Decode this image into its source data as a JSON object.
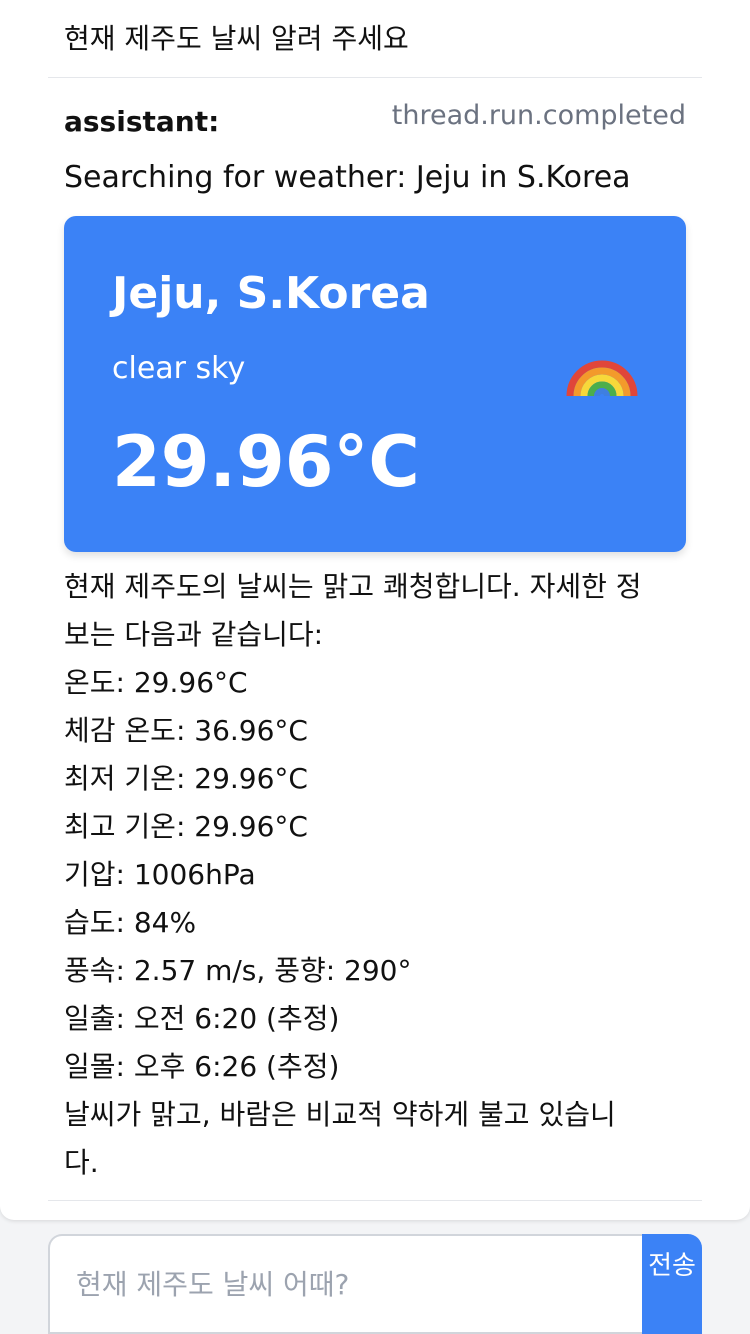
{
  "conversation": {
    "user_message": "현재 제주도 날씨 알려 주세요",
    "assistant": {
      "role_label": "assistant:",
      "run_status": "thread.run.completed",
      "search_text": "Searching for weather: Jeju in S.Korea",
      "weather_card": {
        "location": "Jeju, S.Korea",
        "description": "clear sky",
        "temperature": "29.96°C",
        "icon": "rainbow-icon",
        "background_color": "#3b82f6"
      },
      "details": [
        "현재 제주도의 날씨는 맑고 쾌청합니다. 자세한 정",
        "보는 다음과 같습니다:",
        "온도: 29.96°C",
        "체감 온도: 36.96°C",
        "최저 기온: 29.96°C",
        "최고 기온: 29.96°C",
        "기압: 1006hPa",
        "습도: 84%",
        "풍속: 2.57 m/s, 풍향: 290°",
        "일출: 오전 6:20 (추정)",
        "일몰: 오후 6:26 (추정)",
        "날씨가 맑고, 바람은 비교적 약하게 불고 있습니",
        "다."
      ]
    }
  },
  "composer": {
    "placeholder": "현재 제주도 날씨 어때?",
    "send_label": "전송",
    "accent_color": "#3b82f6"
  }
}
